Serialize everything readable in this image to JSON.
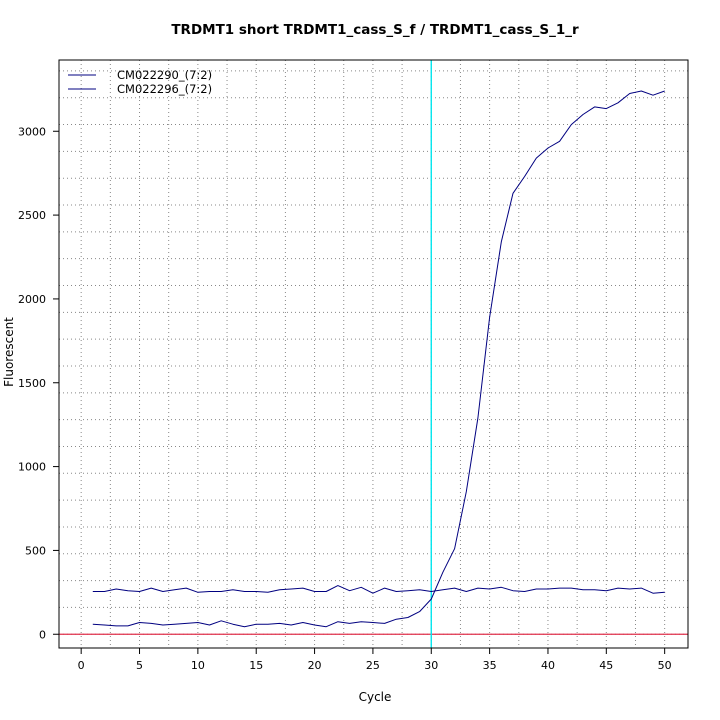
{
  "chart_data": {
    "type": "line",
    "title": "TRDMT1 short TRDMT1_cass_S_f / TRDMT1_cass_S_1_r",
    "xlabel": "Cycle",
    "ylabel": "Fluorescent",
    "xlim": [
      -1.9,
      52
    ],
    "ylim": [
      -82,
      3425
    ],
    "xticks": [
      0,
      5,
      10,
      15,
      20,
      25,
      30,
      35,
      40,
      45,
      50
    ],
    "yticks": [
      0,
      500,
      1000,
      1500,
      2000,
      2500,
      3000
    ],
    "x_gridlines": [
      0,
      2.5,
      5,
      7.5,
      10,
      12.5,
      15,
      17.5,
      20,
      22.5,
      25,
      27.5,
      30,
      32.5,
      35,
      37.5,
      40,
      42.5,
      45,
      47.5,
      50
    ],
    "y_gridlines": [
      0,
      160,
      320,
      480,
      640,
      800,
      960,
      1120,
      1280,
      1440,
      1600,
      1760,
      1920,
      2080,
      2240,
      2400,
      2560,
      2720,
      2880,
      3040,
      3200,
      3360
    ],
    "grid": true,
    "legend_position": "top-left",
    "threshold_cycle": 30,
    "baseline": 0,
    "colors": {
      "series": "#000080",
      "threshold": "#00e5ee",
      "baseline": "#e0314b",
      "grid": "#888888"
    },
    "x": [
      1,
      2,
      3,
      4,
      5,
      6,
      7,
      8,
      9,
      10,
      11,
      12,
      13,
      14,
      15,
      16,
      17,
      18,
      19,
      20,
      21,
      22,
      23,
      24,
      25,
      26,
      27,
      28,
      29,
      30,
      31,
      32,
      33,
      34,
      35,
      36,
      37,
      38,
      39,
      40,
      41,
      42,
      43,
      44,
      45,
      46,
      47,
      48,
      49,
      50
    ],
    "series": [
      {
        "name": "CM022290_(7:2)",
        "values": [
          255,
          255,
          270,
          260,
          255,
          275,
          255,
          265,
          275,
          250,
          255,
          255,
          265,
          255,
          255,
          250,
          265,
          270,
          275,
          255,
          255,
          290,
          260,
          280,
          245,
          275,
          255,
          260,
          265,
          255,
          265,
          275,
          255,
          275,
          270,
          280,
          260,
          255,
          270,
          270,
          275,
          275,
          265,
          265,
          260,
          275,
          270,
          275,
          245,
          250
        ]
      },
      {
        "name": "CM022296_(7:2)",
        "values": [
          60,
          55,
          50,
          50,
          70,
          65,
          55,
          60,
          65,
          70,
          55,
          80,
          60,
          45,
          60,
          60,
          65,
          55,
          70,
          55,
          45,
          75,
          65,
          75,
          70,
          65,
          90,
          100,
          135,
          210,
          370,
          510,
          850,
          1290,
          1890,
          2340,
          2630,
          2730,
          2840,
          2900,
          2940,
          3040,
          3100,
          3145,
          3135,
          3170,
          3225,
          3240,
          3215,
          3240
        ]
      }
    ]
  }
}
